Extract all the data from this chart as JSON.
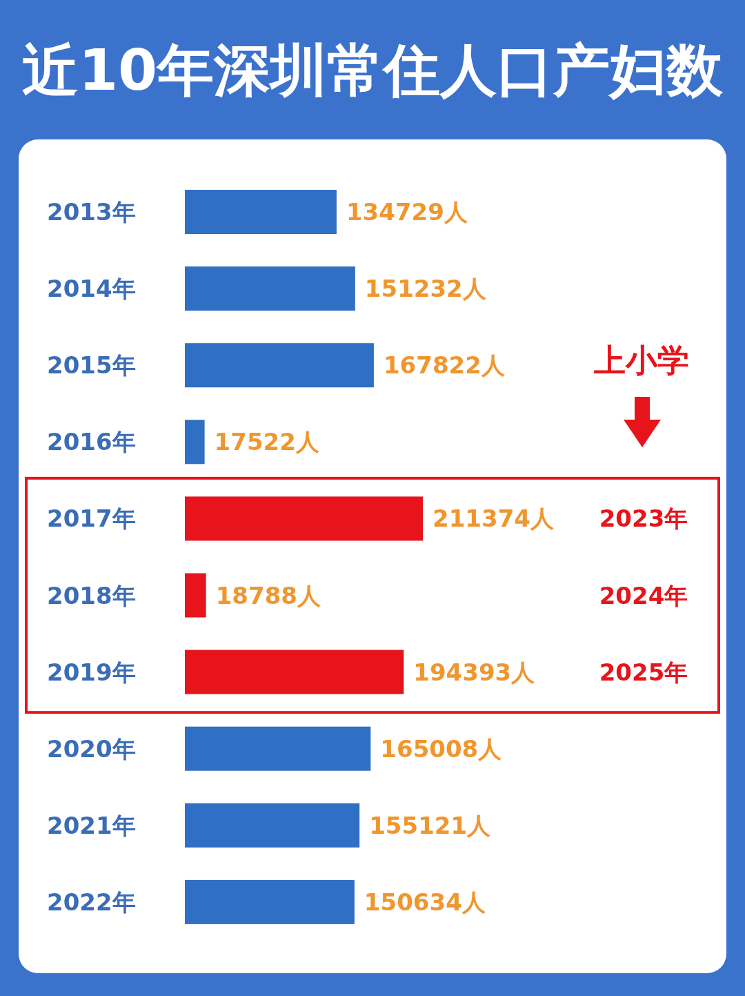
{
  "chart_data": {
    "type": "bar",
    "orientation": "horizontal",
    "title": "近10年深圳常住人口产妇数",
    "categories": [
      "2013年",
      "2014年",
      "2015年",
      "2016年",
      "2017年",
      "2018年",
      "2019年",
      "2020年",
      "2021年",
      "2022年"
    ],
    "values": [
      134729,
      151232,
      167822,
      17522,
      211374,
      18788,
      194393,
      165008,
      155121,
      150634
    ],
    "colors": [
      "#2f6fc4",
      "#2f6fc4",
      "#2f6fc4",
      "#2f6fc4",
      "#e8141b",
      "#e8141b",
      "#e8141b",
      "#2f6fc4",
      "#2f6fc4",
      "#2f6fc4"
    ],
    "value_labels": [
      "134729人",
      "151232人",
      "167822人",
      "17522人",
      "211374人",
      "18788人",
      "194393人",
      "165008人",
      "155121人",
      "150634人"
    ],
    "annotations": [
      "上小学",
      "2023年",
      "2024年",
      "2025年"
    ]
  }
}
